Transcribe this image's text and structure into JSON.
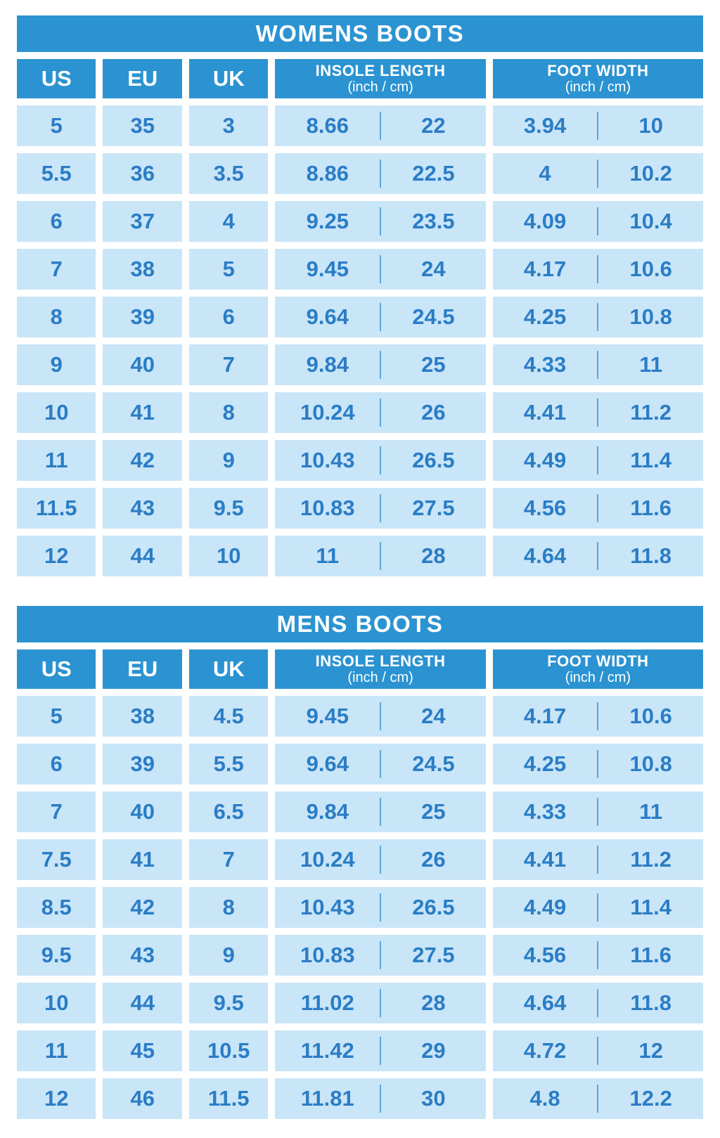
{
  "colors": {
    "header_bg": "#2b93d1",
    "cell_bg": "#c9e5f8",
    "cell_text": "#2a7dc5",
    "divider": "#5aa9d8",
    "header_text": "#ffffff",
    "page_bg": "#ffffff"
  },
  "chart_data": [
    {
      "type": "table",
      "title": "WOMENS BOOTS",
      "headers": {
        "us": "US",
        "eu": "EU",
        "uk": "UK",
        "insole_title": "INSOLE LENGTH",
        "insole_sub": "(inch / cm)",
        "width_title": "FOOT WIDTH",
        "width_sub": "(inch / cm)"
      },
      "rows": [
        {
          "us": "5",
          "eu": "35",
          "uk": "3",
          "insole_inch": "8.66",
          "insole_cm": "22",
          "width_inch": "3.94",
          "width_cm": "10"
        },
        {
          "us": "5.5",
          "eu": "36",
          "uk": "3.5",
          "insole_inch": "8.86",
          "insole_cm": "22.5",
          "width_inch": "4",
          "width_cm": "10.2"
        },
        {
          "us": "6",
          "eu": "37",
          "uk": "4",
          "insole_inch": "9.25",
          "insole_cm": "23.5",
          "width_inch": "4.09",
          "width_cm": "10.4"
        },
        {
          "us": "7",
          "eu": "38",
          "uk": "5",
          "insole_inch": "9.45",
          "insole_cm": "24",
          "width_inch": "4.17",
          "width_cm": "10.6"
        },
        {
          "us": "8",
          "eu": "39",
          "uk": "6",
          "insole_inch": "9.64",
          "insole_cm": "24.5",
          "width_inch": "4.25",
          "width_cm": "10.8"
        },
        {
          "us": "9",
          "eu": "40",
          "uk": "7",
          "insole_inch": "9.84",
          "insole_cm": "25",
          "width_inch": "4.33",
          "width_cm": "11"
        },
        {
          "us": "10",
          "eu": "41",
          "uk": "8",
          "insole_inch": "10.24",
          "insole_cm": "26",
          "width_inch": "4.41",
          "width_cm": "11.2"
        },
        {
          "us": "11",
          "eu": "42",
          "uk": "9",
          "insole_inch": "10.43",
          "insole_cm": "26.5",
          "width_inch": "4.49",
          "width_cm": "11.4"
        },
        {
          "us": "11.5",
          "eu": "43",
          "uk": "9.5",
          "insole_inch": "10.83",
          "insole_cm": "27.5",
          "width_inch": "4.56",
          "width_cm": "11.6"
        },
        {
          "us": "12",
          "eu": "44",
          "uk": "10",
          "insole_inch": "11",
          "insole_cm": "28",
          "width_inch": "4.64",
          "width_cm": "11.8"
        }
      ]
    },
    {
      "type": "table",
      "title": "MENS BOOTS",
      "headers": {
        "us": "US",
        "eu": "EU",
        "uk": "UK",
        "insole_title": "INSOLE LENGTH",
        "insole_sub": "(inch / cm)",
        "width_title": "FOOT WIDTH",
        "width_sub": "(inch / cm)"
      },
      "rows": [
        {
          "us": "5",
          "eu": "38",
          "uk": "4.5",
          "insole_inch": "9.45",
          "insole_cm": "24",
          "width_inch": "4.17",
          "width_cm": "10.6"
        },
        {
          "us": "6",
          "eu": "39",
          "uk": "5.5",
          "insole_inch": "9.64",
          "insole_cm": "24.5",
          "width_inch": "4.25",
          "width_cm": "10.8"
        },
        {
          "us": "7",
          "eu": "40",
          "uk": "6.5",
          "insole_inch": "9.84",
          "insole_cm": "25",
          "width_inch": "4.33",
          "width_cm": "11"
        },
        {
          "us": "7.5",
          "eu": "41",
          "uk": "7",
          "insole_inch": "10.24",
          "insole_cm": "26",
          "width_inch": "4.41",
          "width_cm": "11.2"
        },
        {
          "us": "8.5",
          "eu": "42",
          "uk": "8",
          "insole_inch": "10.43",
          "insole_cm": "26.5",
          "width_inch": "4.49",
          "width_cm": "11.4"
        },
        {
          "us": "9.5",
          "eu": "43",
          "uk": "9",
          "insole_inch": "10.83",
          "insole_cm": "27.5",
          "width_inch": "4.56",
          "width_cm": "11.6"
        },
        {
          "us": "10",
          "eu": "44",
          "uk": "9.5",
          "insole_inch": "11.02",
          "insole_cm": "28",
          "width_inch": "4.64",
          "width_cm": "11.8"
        },
        {
          "us": "11",
          "eu": "45",
          "uk": "10.5",
          "insole_inch": "11.42",
          "insole_cm": "29",
          "width_inch": "4.72",
          "width_cm": "12"
        },
        {
          "us": "12",
          "eu": "46",
          "uk": "11.5",
          "insole_inch": "11.81",
          "insole_cm": "30",
          "width_inch": "4.8",
          "width_cm": "12.2"
        }
      ]
    }
  ]
}
